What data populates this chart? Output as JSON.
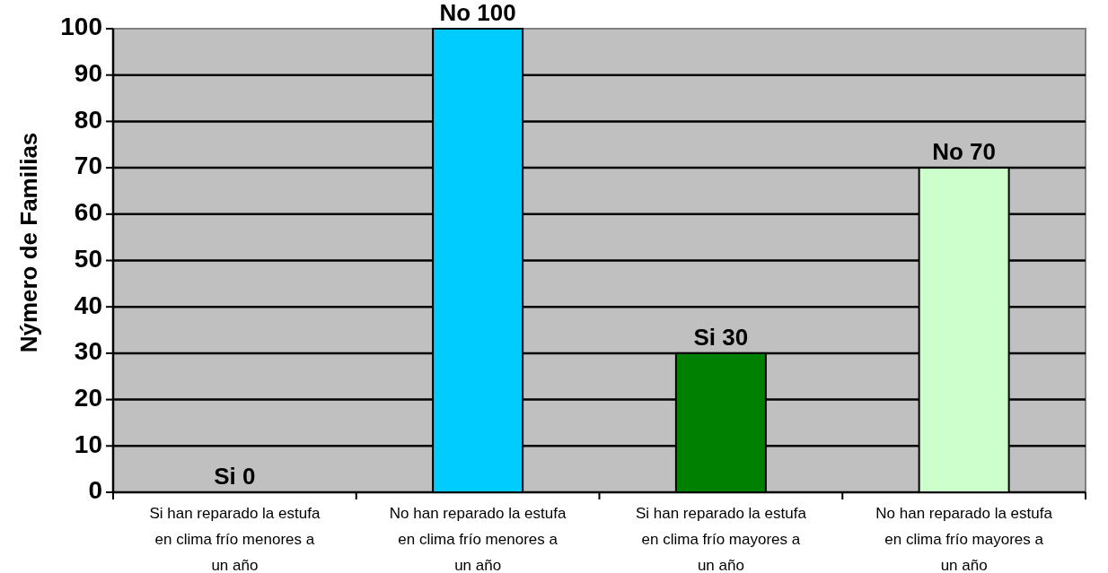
{
  "chart_data": {
    "type": "bar",
    "ylabel": "Nýmero de Familias",
    "categories": [
      "Si han reparado la estufa\nen clima frío menores a\nun año",
      "No han reparado la estufa\nen clima frío menores a\nun año",
      "Si han reparado la estufa\nen clima frío mayores a\nun año",
      "No han reparado la estufa\nen clima frío mayores a\nun año"
    ],
    "values": [
      0,
      100,
      30,
      70
    ],
    "colors": [
      "#0000cc",
      "#00ccff",
      "#008000",
      "#ccffcc"
    ],
    "value_labels": [
      "Si 0",
      "No 100",
      "Si 30",
      "No 70"
    ],
    "ylim": [
      0,
      100
    ],
    "yticks": [
      0,
      10,
      20,
      30,
      40,
      50,
      60,
      70,
      80,
      90,
      100
    ],
    "grid": "y"
  }
}
